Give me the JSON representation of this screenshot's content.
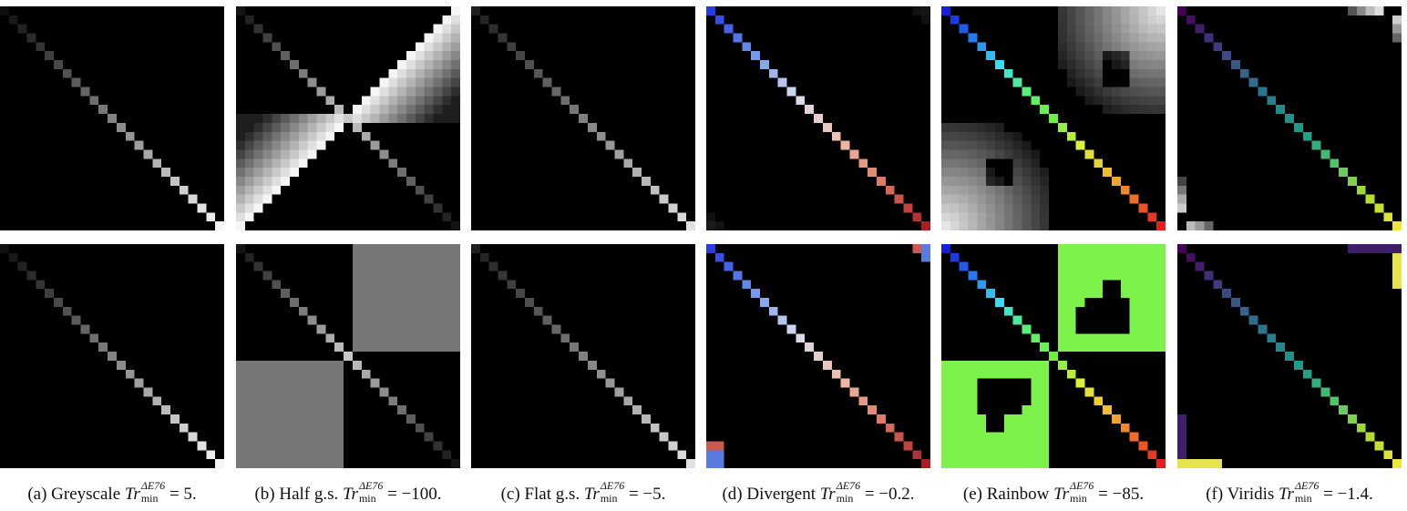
{
  "figure": {
    "grid_size": 25,
    "panels": [
      {
        "id": "a",
        "prefix": "(a)",
        "name": "Greyscale",
        "metric_base": "Tr",
        "metric_sup": "ΔE76",
        "metric_sub": "min",
        "value_text": "= 5.",
        "colormap": "greyscale",
        "rows": [
          {
            "row": "top",
            "diagonal": "grey-ramp",
            "off_diagonal": "black"
          },
          {
            "row": "bottom",
            "diagonal": "grey-ramp",
            "off_diagonal": "black"
          }
        ]
      },
      {
        "id": "b",
        "prefix": "(b)",
        "name": "Half g.s.",
        "metric_base": "Tr",
        "metric_sup": "ΔE76",
        "metric_sub": "min",
        "value_text": "= −100.",
        "colormap": "half-greyscale",
        "rows": [
          {
            "row": "top",
            "diagonal": "v-shape",
            "off_diagonal": "bright anti-diagonal wedges in top-right and bottom-left"
          },
          {
            "row": "bottom",
            "diagonal": "v-shape",
            "off_diagonal": "flat grey blocks in top-right and bottom-left quadrants"
          }
        ],
        "block_grey": "#777777"
      },
      {
        "id": "c",
        "prefix": "(c)",
        "name": "Flat g.s.",
        "metric_base": "Tr",
        "metric_sup": "ΔE76",
        "metric_sub": "min",
        "value_text": "= −5.",
        "colormap": "flat-greyscale",
        "rows": [
          {
            "row": "top",
            "diagonal": "grey-ramp",
            "off_diagonal": "black"
          },
          {
            "row": "bottom",
            "diagonal": "grey-ramp",
            "off_diagonal": "black"
          }
        ]
      },
      {
        "id": "d",
        "prefix": "(d)",
        "name": "Divergent",
        "metric_base": "Tr",
        "metric_sup": "ΔE76",
        "metric_sub": "min",
        "value_text": "= −0.2.",
        "colormap": "divergent",
        "rows": [
          {
            "row": "top",
            "diagonal": "blue-white-red",
            "off_diagonal": "faint corner tiles"
          },
          {
            "row": "bottom",
            "diagonal": "blue-white-red",
            "off_diagonal": "colored corner tiles"
          }
        ],
        "corner_colors": {
          "blue": "#5a7be0",
          "red": "#c85a4e"
        }
      },
      {
        "id": "e",
        "prefix": "(e)",
        "name": "Rainbow",
        "metric_base": "Tr",
        "metric_sup": "ΔE76",
        "metric_sub": "min",
        "value_text": "= −85.",
        "colormap": "rainbow",
        "rows": [
          {
            "row": "top",
            "diagonal": "rainbow",
            "off_diagonal": "grey clouds in top-right and bottom-left"
          },
          {
            "row": "bottom",
            "diagonal": "rainbow",
            "off_diagonal": "green regions in top-right and bottom-left"
          }
        ],
        "region_color": "#7cf24a"
      },
      {
        "id": "f",
        "prefix": "(f)",
        "name": "Viridis",
        "metric_base": "Tr",
        "metric_sup": "ΔE76",
        "metric_sub": "min",
        "value_text": "= −1.4.",
        "colormap": "viridis",
        "rows": [
          {
            "row": "top",
            "diagonal": "viridis",
            "off_diagonal": "small edge tiles"
          },
          {
            "row": "bottom",
            "diagonal": "viridis",
            "off_diagonal": "edge bars"
          }
        ],
        "edge_colors": {
          "purple": "#3f1f6a",
          "yellow": "#e5e44f"
        }
      }
    ]
  }
}
